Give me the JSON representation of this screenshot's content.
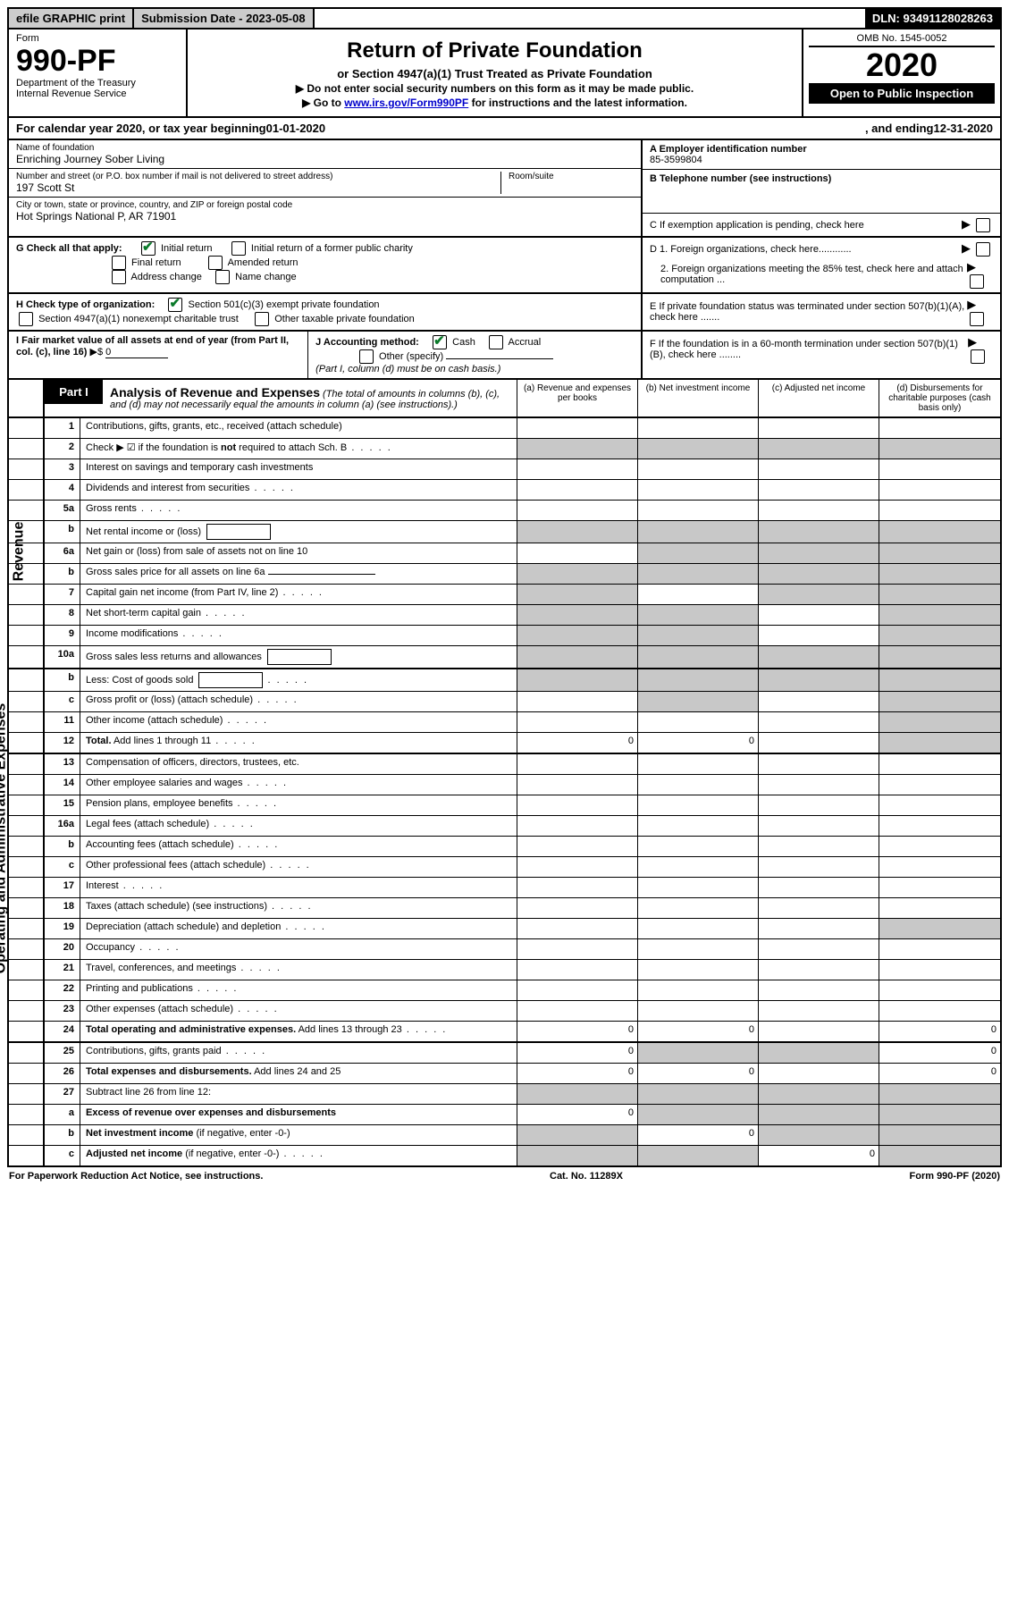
{
  "colors": {
    "background": "#ffffff",
    "text": "#000000",
    "shaded": "#c8c8c8",
    "link": "#0000cc",
    "check_green": "#0a7a2a",
    "topbar_gray": "#cccccc"
  },
  "topbar": {
    "efile": "efile GRAPHIC print",
    "submission_label": "Submission Date - 2023-05-08",
    "dln": "DLN: 93491128028263"
  },
  "header": {
    "form_label": "Form",
    "form_number": "990-PF",
    "dept": "Department of the Treasury",
    "irs": "Internal Revenue Service",
    "title": "Return of Private Foundation",
    "subtitle": "or Section 4947(a)(1) Trust Treated as Private Foundation",
    "instr1": "▶ Do not enter social security numbers on this form as it may be made public.",
    "instr2_pre": "▶ Go to ",
    "instr2_link": "www.irs.gov/Form990PF",
    "instr2_post": " for instructions and the latest information.",
    "omb": "OMB No. 1545-0052",
    "year": "2020",
    "open": "Open to Public Inspection"
  },
  "cal_year": {
    "pre": "For calendar year 2020, or tax year beginning ",
    "begin": "01-01-2020",
    "mid": " , and ending ",
    "end": "12-31-2020"
  },
  "info": {
    "name_label": "Name of foundation",
    "name": "Enriching Journey Sober Living",
    "ein_label": "A Employer identification number",
    "ein": "85-3599804",
    "street_label": "Number and street (or P.O. box number if mail is not delivered to street address)",
    "street": "197 Scott St",
    "room_label": "Room/suite",
    "tel_label": "B Telephone number (see instructions)",
    "city_label": "City or town, state or province, country, and ZIP or foreign postal code",
    "city": "Hot Springs National P, AR  71901",
    "c_label": "C If exemption application is pending, check here"
  },
  "g": {
    "label": "G Check all that apply:",
    "initial": "Initial return",
    "initial_pc": "Initial return of a former public charity",
    "final": "Final return",
    "amended": "Amended return",
    "address": "Address change",
    "name_change": "Name change"
  },
  "d": {
    "d1": "D 1. Foreign organizations, check here............",
    "d2": "2. Foreign organizations meeting the 85% test, check here and attach computation ..."
  },
  "h": {
    "label": "H Check type of organization:",
    "h1": "Section 501(c)(3) exempt private foundation",
    "h2": "Section 4947(a)(1) nonexempt charitable trust",
    "h3": "Other taxable private foundation"
  },
  "e": {
    "label": "E  If private foundation status was terminated under section 507(b)(1)(A), check here ......."
  },
  "i": {
    "label": "I Fair market value of all assets at end of year (from Part II, col. (c), line 16)",
    "arrow": "▶$",
    "value": "0"
  },
  "j": {
    "label": "J Accounting method:",
    "cash": "Cash",
    "accrual": "Accrual",
    "other": "Other (specify)",
    "note": "(Part I, column (d) must be on cash basis.)"
  },
  "f": {
    "label": "F  If the foundation is in a 60-month termination under section 507(b)(1)(B), check here ........"
  },
  "part1": {
    "label": "Part I",
    "title": "Analysis of Revenue and Expenses",
    "title_note": " (The total of amounts in columns (b), (c), and (d) may not necessarily equal the amounts in column (a) (see instructions).)",
    "col_a": "(a)   Revenue and expenses per books",
    "col_b": "(b)   Net investment income",
    "col_c": "(c)  Adjusted net income",
    "col_d": "(d)  Disbursements for charitable purposes (cash basis only)"
  },
  "sections": {
    "revenue": "Revenue",
    "expenses": "Operating and Administrative Expenses"
  },
  "lines": [
    {
      "n": "1",
      "d": "Contributions, gifts, grants, etc., received (attach schedule)",
      "a": "",
      "b": "",
      "c": "",
      "dcol": "",
      "shade": [
        false,
        false,
        false,
        false
      ]
    },
    {
      "n": "2",
      "d": "Check ▶ ☑ if the foundation is <b>not</b> required to attach Sch. B",
      "a": "",
      "b": "",
      "c": "",
      "dcol": "",
      "shade": [
        true,
        true,
        true,
        true
      ],
      "dots": true
    },
    {
      "n": "3",
      "d": "Interest on savings and temporary cash investments",
      "a": "",
      "b": "",
      "c": "",
      "dcol": "",
      "shade": [
        false,
        false,
        false,
        false
      ]
    },
    {
      "n": "4",
      "d": "Dividends and interest from securities",
      "a": "",
      "b": "",
      "c": "",
      "dcol": "",
      "shade": [
        false,
        false,
        false,
        false
      ],
      "dots": true
    },
    {
      "n": "5a",
      "d": "Gross rents",
      "a": "",
      "b": "",
      "c": "",
      "dcol": "",
      "shade": [
        false,
        false,
        false,
        false
      ],
      "dots": true
    },
    {
      "n": "b",
      "d": "Net rental income or (loss)",
      "a": "",
      "b": "",
      "c": "",
      "dcol": "",
      "shade": [
        true,
        true,
        true,
        true
      ],
      "box": true
    },
    {
      "n": "6a",
      "d": "Net gain or (loss) from sale of assets not on line 10",
      "a": "",
      "b": "",
      "c": "",
      "dcol": "",
      "shade": [
        false,
        true,
        true,
        true
      ]
    },
    {
      "n": "b",
      "d": "Gross sales price for all assets on line 6a",
      "a": "",
      "b": "",
      "c": "",
      "dcol": "",
      "shade": [
        true,
        true,
        true,
        true
      ],
      "uline": true
    },
    {
      "n": "7",
      "d": "Capital gain net income (from Part IV, line 2)",
      "a": "",
      "b": "",
      "c": "",
      "dcol": "",
      "shade": [
        true,
        false,
        true,
        true
      ],
      "dots": true
    },
    {
      "n": "8",
      "d": "Net short-term capital gain",
      "a": "",
      "b": "",
      "c": "",
      "dcol": "",
      "shade": [
        true,
        true,
        false,
        true
      ],
      "dots": true
    },
    {
      "n": "9",
      "d": "Income modifications",
      "a": "",
      "b": "",
      "c": "",
      "dcol": "",
      "shade": [
        true,
        true,
        false,
        true
      ],
      "dots": true
    },
    {
      "n": "10a",
      "d": "Gross sales less returns and allowances",
      "a": "",
      "b": "",
      "c": "",
      "dcol": "",
      "shade": [
        true,
        true,
        true,
        true
      ],
      "box": true
    },
    {
      "n": "b",
      "d": "Less: Cost of goods sold",
      "a": "",
      "b": "",
      "c": "",
      "dcol": "",
      "shade": [
        true,
        true,
        true,
        true
      ],
      "box": true,
      "dots": true
    },
    {
      "n": "c",
      "d": "Gross profit or (loss) (attach schedule)",
      "a": "",
      "b": "",
      "c": "",
      "dcol": "",
      "shade": [
        false,
        true,
        false,
        true
      ],
      "dots": true
    },
    {
      "n": "11",
      "d": "Other income (attach schedule)",
      "a": "",
      "b": "",
      "c": "",
      "dcol": "",
      "shade": [
        false,
        false,
        false,
        true
      ],
      "dots": true
    },
    {
      "n": "12",
      "d": "<b>Total.</b> Add lines 1 through 11",
      "a": "0",
      "b": "0",
      "c": "",
      "dcol": "",
      "shade": [
        false,
        false,
        false,
        true
      ],
      "dots": true,
      "bold": true
    },
    {
      "n": "13",
      "d": "Compensation of officers, directors, trustees, etc.",
      "a": "",
      "b": "",
      "c": "",
      "dcol": "",
      "shade": [
        false,
        false,
        false,
        false
      ]
    },
    {
      "n": "14",
      "d": "Other employee salaries and wages",
      "a": "",
      "b": "",
      "c": "",
      "dcol": "",
      "shade": [
        false,
        false,
        false,
        false
      ],
      "dots": true
    },
    {
      "n": "15",
      "d": "Pension plans, employee benefits",
      "a": "",
      "b": "",
      "c": "",
      "dcol": "",
      "shade": [
        false,
        false,
        false,
        false
      ],
      "dots": true
    },
    {
      "n": "16a",
      "d": "Legal fees (attach schedule)",
      "a": "",
      "b": "",
      "c": "",
      "dcol": "",
      "shade": [
        false,
        false,
        false,
        false
      ],
      "dots": true
    },
    {
      "n": "b",
      "d": "Accounting fees (attach schedule)",
      "a": "",
      "b": "",
      "c": "",
      "dcol": "",
      "shade": [
        false,
        false,
        false,
        false
      ],
      "dots": true
    },
    {
      "n": "c",
      "d": "Other professional fees (attach schedule)",
      "a": "",
      "b": "",
      "c": "",
      "dcol": "",
      "shade": [
        false,
        false,
        false,
        false
      ],
      "dots": true
    },
    {
      "n": "17",
      "d": "Interest",
      "a": "",
      "b": "",
      "c": "",
      "dcol": "",
      "shade": [
        false,
        false,
        false,
        false
      ],
      "dots": true
    },
    {
      "n": "18",
      "d": "Taxes (attach schedule) (see instructions)",
      "a": "",
      "b": "",
      "c": "",
      "dcol": "",
      "shade": [
        false,
        false,
        false,
        false
      ],
      "dots": true
    },
    {
      "n": "19",
      "d": "Depreciation (attach schedule) and depletion",
      "a": "",
      "b": "",
      "c": "",
      "dcol": "",
      "shade": [
        false,
        false,
        false,
        true
      ],
      "dots": true
    },
    {
      "n": "20",
      "d": "Occupancy",
      "a": "",
      "b": "",
      "c": "",
      "dcol": "",
      "shade": [
        false,
        false,
        false,
        false
      ],
      "dots": true
    },
    {
      "n": "21",
      "d": "Travel, conferences, and meetings",
      "a": "",
      "b": "",
      "c": "",
      "dcol": "",
      "shade": [
        false,
        false,
        false,
        false
      ],
      "dots": true
    },
    {
      "n": "22",
      "d": "Printing and publications",
      "a": "",
      "b": "",
      "c": "",
      "dcol": "",
      "shade": [
        false,
        false,
        false,
        false
      ],
      "dots": true
    },
    {
      "n": "23",
      "d": "Other expenses (attach schedule)",
      "a": "",
      "b": "",
      "c": "",
      "dcol": "",
      "shade": [
        false,
        false,
        false,
        false
      ],
      "dots": true
    },
    {
      "n": "24",
      "d": "<b>Total operating and administrative expenses.</b> Add lines 13 through 23",
      "a": "0",
      "b": "0",
      "c": "",
      "dcol": "0",
      "shade": [
        false,
        false,
        false,
        false
      ],
      "dots": true
    },
    {
      "n": "25",
      "d": "Contributions, gifts, grants paid",
      "a": "0",
      "b": "",
      "c": "",
      "dcol": "0",
      "shade": [
        false,
        true,
        true,
        false
      ],
      "dots": true
    },
    {
      "n": "26",
      "d": "<b>Total expenses and disbursements.</b> Add lines 24 and 25",
      "a": "0",
      "b": "0",
      "c": "",
      "dcol": "0",
      "shade": [
        false,
        false,
        false,
        false
      ]
    },
    {
      "n": "27",
      "d": "Subtract line 26 from line 12:",
      "a": "",
      "b": "",
      "c": "",
      "dcol": "",
      "shade": [
        true,
        true,
        true,
        true
      ]
    },
    {
      "n": "a",
      "d": "<b>Excess of revenue over expenses and disbursements</b>",
      "a": "0",
      "b": "",
      "c": "",
      "dcol": "",
      "shade": [
        false,
        true,
        true,
        true
      ]
    },
    {
      "n": "b",
      "d": "<b>Net investment income</b> (if negative, enter -0-)",
      "a": "",
      "b": "0",
      "c": "",
      "dcol": "",
      "shade": [
        true,
        false,
        true,
        true
      ]
    },
    {
      "n": "c",
      "d": "<b>Adjusted net income</b> (if negative, enter -0-)",
      "a": "",
      "b": "",
      "c": "0",
      "dcol": "",
      "shade": [
        true,
        true,
        false,
        true
      ],
      "dots": true
    }
  ],
  "footer": {
    "left": "For Paperwork Reduction Act Notice, see instructions.",
    "mid": "Cat. No. 11289X",
    "right": "Form 990-PF (2020)"
  }
}
